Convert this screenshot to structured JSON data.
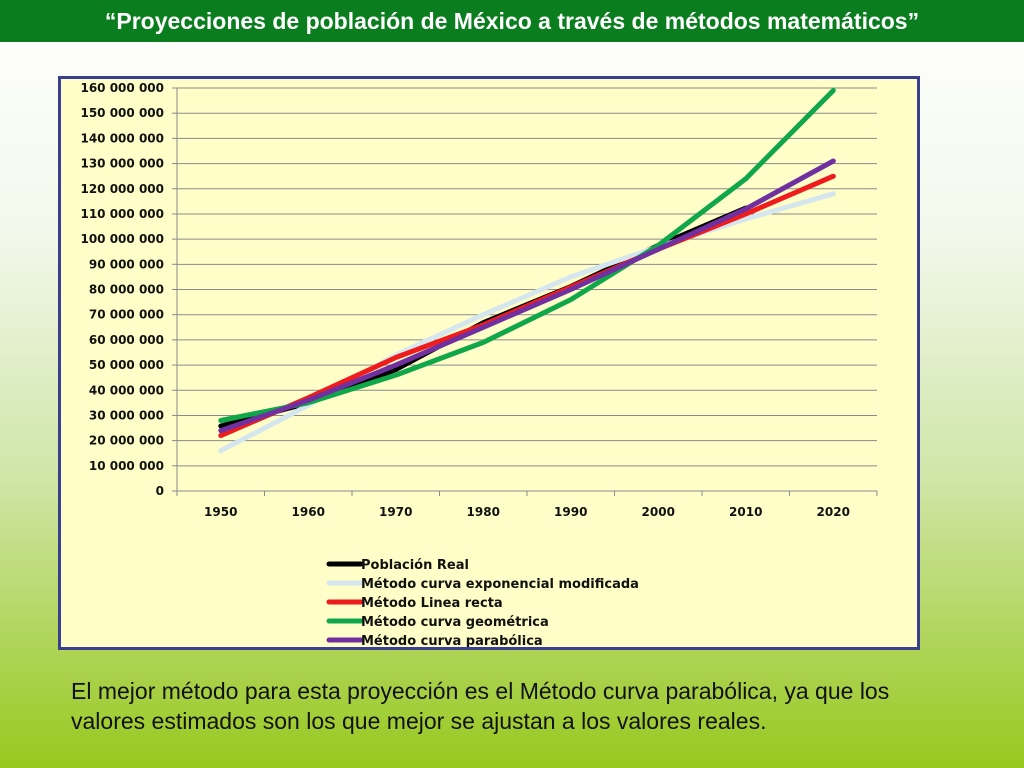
{
  "title": "“Proyecciones de población de México a través de métodos matemáticos”",
  "caption": "El mejor método para esta proyección es el Método curva parabólica, ya que los valores estimados son los que mejor se ajustan a los valores reales.",
  "colors": {
    "title_bar": "#0a7d1e",
    "plot_background": "#fffec8",
    "frame_border": "#3a3f8f"
  },
  "chart_data": {
    "type": "line",
    "x": [
      "1950",
      "1960",
      "1970",
      "1980",
      "1990",
      "2000",
      "2010",
      "2020"
    ],
    "ylim": [
      0,
      160000000
    ],
    "ytick_step": 10000000,
    "y_tick_labels": [
      "0",
      "10 000 000",
      "20 000 000",
      "30 000 000",
      "40 000 000",
      "50 000 000",
      "60 000 000",
      "70 000 000",
      "80 000 000",
      "90 000 000",
      "100 000 000",
      "110 000 000",
      "120 000 000",
      "130 000 000",
      "140 000 000",
      "150 000 000",
      "160 000 000"
    ],
    "grid": true,
    "legend_position": "bottom",
    "series": [
      {
        "name": "Población Real",
        "color": "#000000",
        "values": [
          25800000,
          34900000,
          48200000,
          66800000,
          81200000,
          97500000,
          112300000,
          null
        ]
      },
      {
        "name": "Método curva exponencial modificada",
        "color": "#d6e6ef",
        "values": [
          16000000,
          34000000,
          54000000,
          70000000,
          85000000,
          97000000,
          108000000,
          118000000
        ]
      },
      {
        "name": "Método Linea recta",
        "color": "#ee1c1c",
        "values": [
          22000000,
          37000000,
          53000000,
          66000000,
          81000000,
          96000000,
          110000000,
          125000000
        ]
      },
      {
        "name": "Método curva geométrica",
        "color": "#10a64a",
        "values": [
          28000000,
          35000000,
          46000000,
          59000000,
          76000000,
          97500000,
          124000000,
          159000000
        ]
      },
      {
        "name": "Método curva parabólica",
        "color": "#7030a0",
        "values": [
          24000000,
          36000000,
          50000000,
          65000000,
          80000000,
          96000000,
          112000000,
          131000000
        ]
      }
    ]
  }
}
